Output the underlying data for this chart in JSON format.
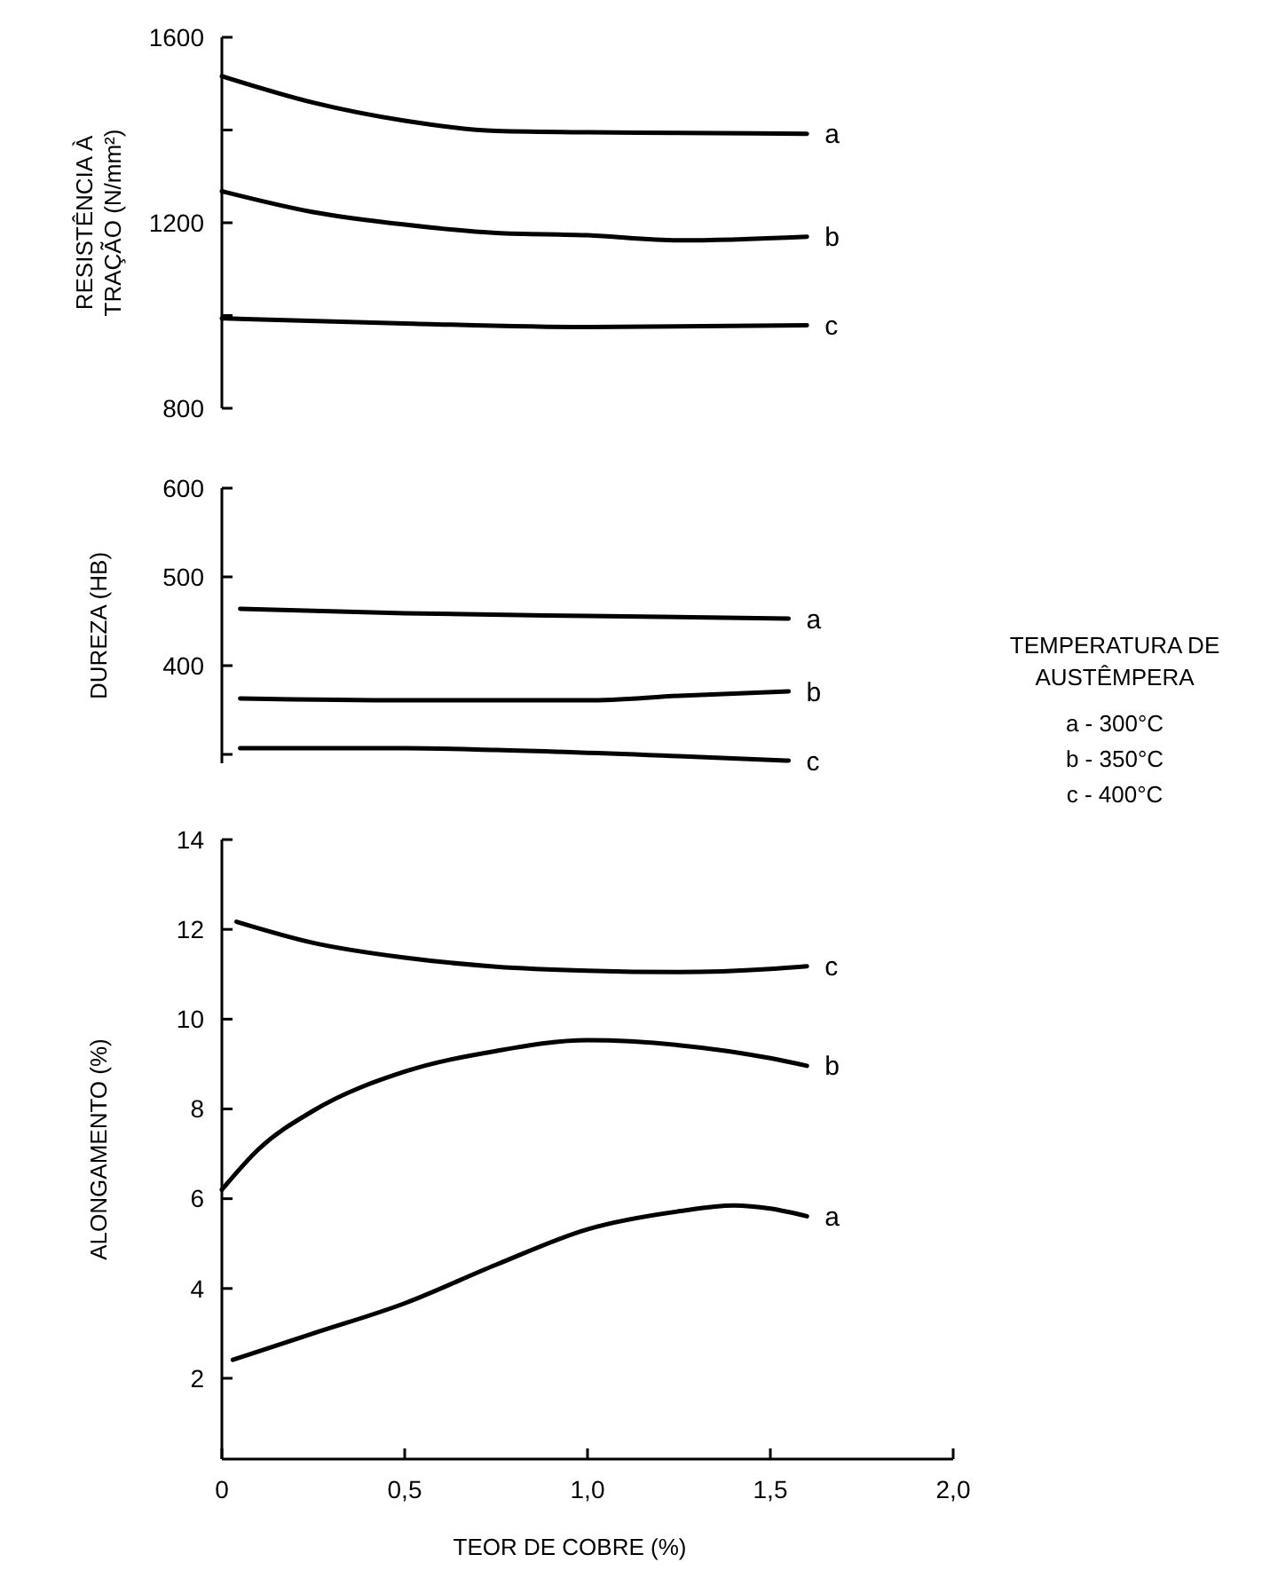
{
  "chart_data": [
    {
      "type": "line",
      "ylabel": "RESISTÊNCIA À TRAÇÃO (N/mm²)",
      "xlim": [
        0,
        2
      ],
      "ylim": [
        800,
        1600
      ],
      "yticks": [
        800,
        {
          "value": 1000,
          "label": null
        },
        1200,
        {
          "value": 1400,
          "label": null
        },
        1600
      ],
      "tick_labels": "y",
      "grid": false,
      "marker": "none",
      "line_style": "solid",
      "series": [
        {
          "name": "a",
          "color": "#000000",
          "x": [
            0,
            0.25,
            0.5,
            0.75,
            1.0,
            1.25,
            1.6
          ],
          "values": [
            1516,
            1459,
            1420,
            1398,
            1395,
            1394,
            1392
          ]
        },
        {
          "name": "b",
          "color": "#000000",
          "x": [
            0,
            0.25,
            0.5,
            0.75,
            1.0,
            1.25,
            1.6
          ],
          "values": [
            1268,
            1223,
            1196,
            1178,
            1173,
            1162,
            1170
          ]
        },
        {
          "name": "c",
          "color": "#000000",
          "x": [
            0,
            0.5,
            1.0,
            1.6
          ],
          "values": [
            994,
            983,
            975,
            979
          ]
        }
      ]
    },
    {
      "type": "line",
      "ylabel": "DUREZA (HB)",
      "xlim": [
        0,
        2
      ],
      "ylim": [
        290,
        600
      ],
      "yticks": [
        {
          "value": 300,
          "label": null
        },
        400,
        500,
        600
      ],
      "tick_labels": "y",
      "grid": false,
      "marker": "none",
      "line_style": "solid",
      "annotations": [
        "TEMPERATURA DE AUSTÊMPERA",
        "a - 300°C",
        "b - 350°C",
        "c - 400°C"
      ],
      "series": [
        {
          "name": "a",
          "color": "#000000",
          "x": [
            0.05,
            0.5,
            1.0,
            1.55
          ],
          "values": [
            464,
            459,
            456,
            453
          ]
        },
        {
          "name": "b",
          "color": "#000000",
          "x": [
            0.05,
            0.5,
            1.0,
            1.25,
            1.55
          ],
          "values": [
            363,
            361,
            361,
            366,
            371
          ]
        },
        {
          "name": "c",
          "color": "#000000",
          "x": [
            0.05,
            0.5,
            0.75,
            1.25,
            1.55
          ],
          "values": [
            307,
            307,
            305,
            298,
            293
          ]
        }
      ]
    },
    {
      "type": "line",
      "xlabel": "TEOR DE COBRE (%)",
      "ylabel": "ALONGAMENTO (%)",
      "xlim": [
        0,
        2
      ],
      "xticks": [
        0,
        {
          "value": 0.5,
          "label": "0,5"
        },
        {
          "value": 1,
          "label": "1,0"
        },
        {
          "value": 1.5,
          "label": "1,5"
        },
        {
          "value": 2,
          "label": "2,0"
        }
      ],
      "ylim": [
        0.2,
        14
      ],
      "yticks": [
        2,
        4,
        6,
        8,
        10,
        12,
        14
      ],
      "grid": false,
      "marker": "none",
      "line_style": "solid",
      "series": [
        {
          "name": "c",
          "color": "#000000",
          "x": [
            0.04,
            0.25,
            0.5,
            0.75,
            1.0,
            1.25,
            1.5,
            1.6
          ],
          "values": [
            12.17,
            11.7,
            11.37,
            11.17,
            11.08,
            11.05,
            11.12,
            11.18
          ]
        },
        {
          "name": "b",
          "color": "#000000",
          "x": [
            0,
            0.1,
            0.25,
            0.5,
            0.75,
            1.0,
            1.25,
            1.5,
            1.6
          ],
          "values": [
            6.2,
            7.1,
            7.96,
            8.83,
            9.29,
            9.53,
            9.42,
            9.13,
            8.96
          ]
        },
        {
          "name": "a",
          "color": "#000000",
          "x": [
            0.03,
            0.25,
            0.5,
            0.75,
            1.0,
            1.25,
            1.4,
            1.5,
            1.6
          ],
          "values": [
            2.41,
            3.0,
            3.67,
            4.53,
            5.32,
            5.72,
            5.85,
            5.78,
            5.61
          ]
        }
      ]
    }
  ]
}
